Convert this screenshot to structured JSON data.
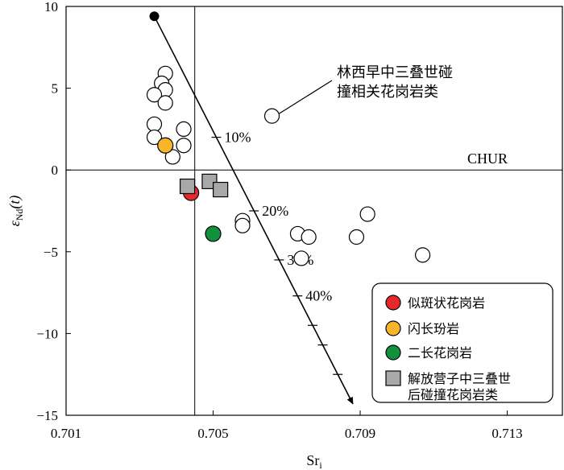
{
  "chart_data": {
    "type": "scatter",
    "xlabel_main": "Sr",
    "xlabel_sub": "i",
    "ylabel_main": "ε",
    "ylabel_sub": "Nd",
    "ylabel_tail": "(t)",
    "xlim": [
      0.701,
      0.7145
    ],
    "ylim": [
      -15,
      10
    ],
    "x_ticks": [
      {
        "value": 0.701,
        "label": "0.701"
      },
      {
        "value": 0.705,
        "label": "0.705"
      },
      {
        "value": 0.709,
        "label": "0.709"
      },
      {
        "value": 0.713,
        "label": "0.713"
      }
    ],
    "y_ticks": [
      {
        "value": 10,
        "label": "10"
      },
      {
        "value": 5,
        "label": "5"
      },
      {
        "value": 0,
        "label": "0"
      },
      {
        "value": -5,
        "label": "-5"
      },
      {
        "value": -10,
        "label": "-10"
      },
      {
        "value": -15,
        "label": "-15"
      }
    ],
    "chur_label": "CHUR",
    "chur_y": 0,
    "vertical_ref_x": 0.7045,
    "annotation": {
      "line1": "林西早中三叠世碰",
      "line2": "撞相关花岗岩类"
    },
    "mixing_line": {
      "start": [
        0.7034,
        9.4
      ],
      "end": [
        0.7088,
        -14.3
      ],
      "start_color": "#000000",
      "ticks_y": [
        2,
        -2.5,
        -5.5,
        -7.7,
        -9.5,
        -10.7,
        -12.5
      ],
      "tick_labels": [
        {
          "label": "10%",
          "y": 2
        },
        {
          "label": "20%",
          "y": -2.5
        },
        {
          "label": "30%",
          "y": -5.5
        },
        {
          "label": "40%",
          "y": -7.7
        }
      ]
    },
    "series": [
      {
        "name": "林西早中三叠世碰撞相关花岗岩类",
        "marker": "circle-open",
        "color": "#ffffff",
        "points": [
          [
            0.7037,
            5.9
          ],
          [
            0.7036,
            5.3
          ],
          [
            0.7037,
            4.9
          ],
          [
            0.7034,
            4.6
          ],
          [
            0.7037,
            4.1
          ],
          [
            0.7034,
            2.8
          ],
          [
            0.7034,
            2.0
          ],
          [
            0.7042,
            2.5
          ],
          [
            0.7042,
            1.5
          ],
          [
            0.7039,
            0.8
          ],
          [
            0.7066,
            3.3
          ],
          [
            0.7058,
            -3.1
          ],
          [
            0.7058,
            -3.4
          ],
          [
            0.7073,
            -3.9
          ],
          [
            0.7074,
            -5.4
          ],
          [
            0.7076,
            -4.1
          ],
          [
            0.7089,
            -4.1
          ],
          [
            0.7092,
            -2.7
          ],
          [
            0.7107,
            -5.2
          ]
        ]
      },
      {
        "name": "似斑状花岗岩",
        "marker": "circle",
        "color": "#e8272a",
        "points": [
          [
            0.7044,
            -1.4
          ]
        ]
      },
      {
        "name": "闪长玢岩",
        "marker": "circle",
        "color": "#f9b52a",
        "points": [
          [
            0.7037,
            1.5
          ]
        ]
      },
      {
        "name": "二长花岗岩",
        "marker": "circle",
        "color": "#11913c",
        "points": [
          [
            0.705,
            -3.9
          ]
        ]
      },
      {
        "name": "解放营子中三叠世后碰撞花岗岩类",
        "marker": "square",
        "color": "#a8a8a8",
        "points": [
          [
            0.7043,
            -1.0
          ],
          [
            0.7049,
            -0.7
          ],
          [
            0.7052,
            -1.2
          ]
        ]
      }
    ],
    "legend": {
      "placement": "bottom-right",
      "items": [
        {
          "label": "似斑状花岗岩",
          "marker": "circle",
          "color": "#e8272a"
        },
        {
          "label": "闪长玢岩",
          "marker": "circle",
          "color": "#f9b52a"
        },
        {
          "label": "二长花岗岩",
          "marker": "circle",
          "color": "#11913c"
        },
        {
          "label": "解放营子中三叠世",
          "label2": "后碰撞花岗岩类",
          "marker": "square",
          "color": "#a8a8a8"
        }
      ]
    }
  }
}
